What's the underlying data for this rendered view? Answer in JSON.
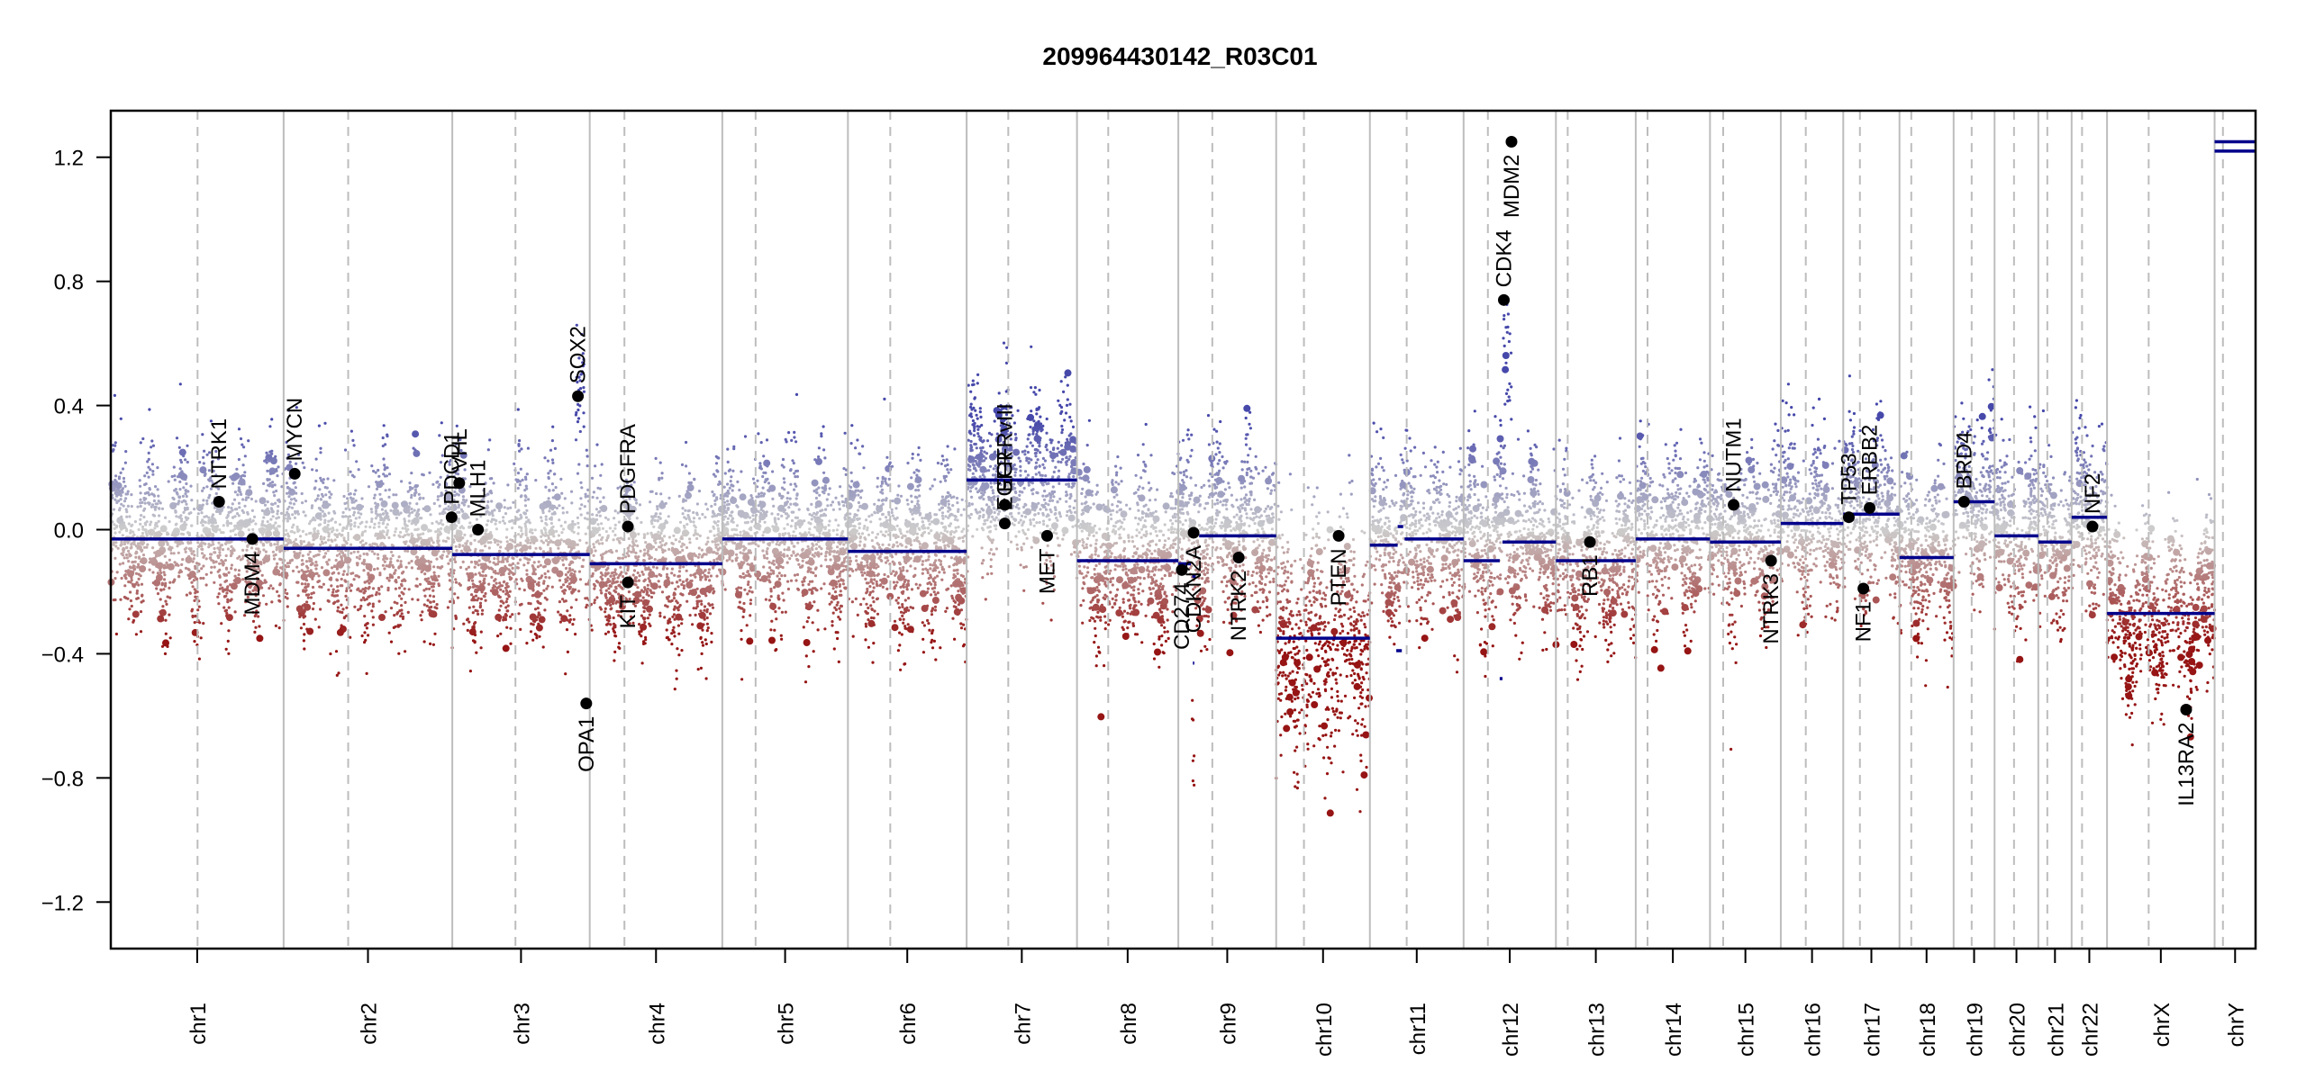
{
  "chart_data": {
    "type": "scatter",
    "title": "209964430142_R03C01",
    "xlabel": "",
    "ylabel": "",
    "ylim": [
      -1.35,
      1.35
    ],
    "yticks": [
      1.2,
      0.8,
      0.4,
      0.0,
      -0.4,
      -0.8,
      -1.2
    ],
    "ytick_labels": [
      "1.2",
      "0.8",
      "0.4",
      "0.0",
      "−0.4",
      "−0.8",
      "−1.2"
    ],
    "grid": false,
    "colors": {
      "gain": "#3b3fa0",
      "neutral": "#c8c8c8",
      "loss": "#9b1c1c",
      "segment": "#00008b",
      "gene_point": "#000000",
      "chrom_border": "#bdbdbd",
      "centromere": "#bdbdbd"
    },
    "chromosomes": [
      {
        "name": "chr1",
        "length_mb": 249,
        "centromere_mb": 125
      },
      {
        "name": "chr2",
        "length_mb": 243,
        "centromere_mb": 93
      },
      {
        "name": "chr3",
        "length_mb": 198,
        "centromere_mb": 91
      },
      {
        "name": "chr4",
        "length_mb": 191,
        "centromere_mb": 50
      },
      {
        "name": "chr5",
        "length_mb": 181,
        "centromere_mb": 48
      },
      {
        "name": "chr6",
        "length_mb": 171,
        "centromere_mb": 61
      },
      {
        "name": "chr7",
        "length_mb": 159,
        "centromere_mb": 60
      },
      {
        "name": "chr8",
        "length_mb": 146,
        "centromere_mb": 45
      },
      {
        "name": "chr9",
        "length_mb": 141,
        "centromere_mb": 49
      },
      {
        "name": "chr10",
        "length_mb": 135,
        "centromere_mb": 40
      },
      {
        "name": "chr11",
        "length_mb": 135,
        "centromere_mb": 53
      },
      {
        "name": "chr12",
        "length_mb": 133,
        "centromere_mb": 35
      },
      {
        "name": "chr13",
        "length_mb": 115,
        "centromere_mb": 17
      },
      {
        "name": "chr14",
        "length_mb": 107,
        "centromere_mb": 17
      },
      {
        "name": "chr15",
        "length_mb": 102,
        "centromere_mb": 19
      },
      {
        "name": "chr16",
        "length_mb": 90,
        "centromere_mb": 36
      },
      {
        "name": "chr17",
        "length_mb": 81,
        "centromere_mb": 24
      },
      {
        "name": "chr18",
        "length_mb": 78,
        "centromere_mb": 17
      },
      {
        "name": "chr19",
        "length_mb": 59,
        "centromere_mb": 26
      },
      {
        "name": "chr20",
        "length_mb": 63,
        "centromere_mb": 28
      },
      {
        "name": "chr21",
        "length_mb": 48,
        "centromere_mb": 13
      },
      {
        "name": "chr22",
        "length_mb": 51,
        "centromere_mb": 15
      },
      {
        "name": "chrX",
        "length_mb": 155,
        "centromere_mb": 60
      },
      {
        "name": "chrY",
        "length_mb": 59,
        "centromere_mb": 12
      }
    ],
    "segments": [
      {
        "chr": "chr1",
        "start": 0,
        "end": 249,
        "value": -0.03
      },
      {
        "chr": "chr2",
        "start": 0,
        "end": 243,
        "value": -0.06
      },
      {
        "chr": "chr3",
        "start": 0,
        "end": 198,
        "value": -0.08
      },
      {
        "chr": "chr4",
        "start": 0,
        "end": 191,
        "value": -0.11
      },
      {
        "chr": "chr5",
        "start": 0,
        "end": 181,
        "value": -0.03
      },
      {
        "chr": "chr6",
        "start": 0,
        "end": 171,
        "value": -0.07
      },
      {
        "chr": "chr7",
        "start": 0,
        "end": 159,
        "value": 0.16
      },
      {
        "chr": "chr8",
        "start": 0,
        "end": 146,
        "value": -0.1
      },
      {
        "chr": "chr9",
        "start": 0,
        "end": 18,
        "value": -0.11
      },
      {
        "chr": "chr9",
        "start": 20,
        "end": 25,
        "value": -0.15
      },
      {
        "chr": "chr9",
        "start": 21,
        "end": 23,
        "value": -0.43
      },
      {
        "chr": "chr9",
        "start": 30,
        "end": 141,
        "value": -0.02
      },
      {
        "chr": "chr10",
        "start": 0,
        "end": 135,
        "value": -0.35
      },
      {
        "chr": "chr11",
        "start": 0,
        "end": 40,
        "value": -0.05
      },
      {
        "chr": "chr11",
        "start": 40,
        "end": 48,
        "value": 0.01
      },
      {
        "chr": "chr11",
        "start": 38,
        "end": 46,
        "value": -0.39
      },
      {
        "chr": "chr11",
        "start": 50,
        "end": 135,
        "value": -0.03
      },
      {
        "chr": "chr12",
        "start": 0,
        "end": 52,
        "value": -0.1
      },
      {
        "chr": "chr12",
        "start": 52,
        "end": 56,
        "value": -0.48
      },
      {
        "chr": "chr12",
        "start": 56,
        "end": 133,
        "value": -0.04
      },
      {
        "chr": "chr13",
        "start": 0,
        "end": 115,
        "value": -0.1
      },
      {
        "chr": "chr14",
        "start": 0,
        "end": 107,
        "value": -0.03
      },
      {
        "chr": "chr15",
        "start": 0,
        "end": 102,
        "value": -0.04
      },
      {
        "chr": "chr16",
        "start": 0,
        "end": 90,
        "value": 0.02
      },
      {
        "chr": "chr17",
        "start": 0,
        "end": 81,
        "value": 0.05
      },
      {
        "chr": "chr18",
        "start": 0,
        "end": 78,
        "value": -0.09
      },
      {
        "chr": "chr19",
        "start": 0,
        "end": 59,
        "value": 0.09
      },
      {
        "chr": "chr20",
        "start": 0,
        "end": 63,
        "value": -0.02
      },
      {
        "chr": "chr21",
        "start": 0,
        "end": 48,
        "value": -0.04
      },
      {
        "chr": "chr22",
        "start": 0,
        "end": 51,
        "value": 0.04
      },
      {
        "chrX": "",
        "chr": "chrX",
        "start": 0,
        "end": 155,
        "value": -0.27
      },
      {
        "chr": "chrY",
        "start": 0,
        "end": 59,
        "value": 1.22
      },
      {
        "chr": "chrY",
        "start": 0,
        "end": 59,
        "value": 1.25
      }
    ],
    "genes": [
      {
        "name": "NTRK1",
        "chr": "chr1",
        "pos_mb": 156,
        "value": 0.09,
        "label_side": "above"
      },
      {
        "name": "MDM4",
        "chr": "chr1",
        "pos_mb": 204,
        "value": -0.03,
        "label_side": "below"
      },
      {
        "name": "MYCN",
        "chr": "chr2",
        "pos_mb": 16,
        "value": 0.18,
        "label_side": "above"
      },
      {
        "name": "PDCD1",
        "chr": "chr2",
        "pos_mb": 242,
        "value": 0.04,
        "label_side": "above"
      },
      {
        "name": "VHL",
        "chr": "chr3",
        "pos_mb": 10,
        "value": 0.15,
        "label_side": "above"
      },
      {
        "name": "MLH1",
        "chr": "chr3",
        "pos_mb": 37,
        "value": 0.0,
        "label_side": "above"
      },
      {
        "name": "SOX2",
        "chr": "chr3",
        "pos_mb": 181,
        "value": 0.43,
        "label_side": "above"
      },
      {
        "name": "OPA1",
        "chr": "chr3",
        "pos_mb": 193,
        "value": -0.56,
        "label_side": "below"
      },
      {
        "name": "PDGFRA",
        "chr": "chr4",
        "pos_mb": 55,
        "value": 0.01,
        "label_side": "above"
      },
      {
        "name": "KIT",
        "chr": "chr4",
        "pos_mb": 55,
        "value": -0.17,
        "label_side": "below"
      },
      {
        "name": "EGFR",
        "chr": "chr7",
        "pos_mb": 55,
        "value": 0.02,
        "label_side": "above"
      },
      {
        "name": "EGFRvIII",
        "chr": "chr7",
        "pos_mb": 55,
        "value": 0.08,
        "label_side": "above"
      },
      {
        "name": "MET",
        "chr": "chr7",
        "pos_mb": 116,
        "value": -0.02,
        "label_side": "below"
      },
      {
        "name": "CD274",
        "chr": "chr9",
        "pos_mb": 5,
        "value": -0.13,
        "label_side": "below"
      },
      {
        "name": "CDKN2A",
        "chr": "chr9",
        "pos_mb": 22,
        "value": -0.01,
        "label_side": "below"
      },
      {
        "name": "NTRK2",
        "chr": "chr9",
        "pos_mb": 87,
        "value": -0.09,
        "label_side": "below"
      },
      {
        "name": "PTEN",
        "chr": "chr10",
        "pos_mb": 90,
        "value": -0.02,
        "label_side": "below"
      },
      {
        "name": "CDK4",
        "chr": "chr12",
        "pos_mb": 58,
        "value": 0.74,
        "label_side": "above"
      },
      {
        "name": "MDM2",
        "chr": "chr12",
        "pos_mb": 69,
        "value": 1.25,
        "label_side": "below"
      },
      {
        "name": "RB1",
        "chr": "chr13",
        "pos_mb": 49,
        "value": -0.04,
        "label_side": "below"
      },
      {
        "name": "NUTM1",
        "chr": "chr15",
        "pos_mb": 34,
        "value": 0.08,
        "label_side": "above"
      },
      {
        "name": "NTRK3",
        "chr": "chr15",
        "pos_mb": 88,
        "value": -0.1,
        "label_side": "below"
      },
      {
        "name": "TP53",
        "chr": "chr17",
        "pos_mb": 8,
        "value": 0.04,
        "label_side": "above"
      },
      {
        "name": "NF1",
        "chr": "chr17",
        "pos_mb": 29,
        "value": -0.19,
        "label_side": "below"
      },
      {
        "name": "ERBB2",
        "chr": "chr17",
        "pos_mb": 38,
        "value": 0.07,
        "label_side": "above"
      },
      {
        "name": "BRD4",
        "chr": "chr19",
        "pos_mb": 15,
        "value": 0.09,
        "label_side": "above"
      },
      {
        "name": "NF2",
        "chr": "chr22",
        "pos_mb": 30,
        "value": 0.01,
        "label_side": "above"
      },
      {
        "name": "IL13RA2",
        "chr": "chrX",
        "pos_mb": 114,
        "value": -0.58,
        "label_side": "below"
      }
    ],
    "probe_noise": {
      "description": "Dense per-probe log2 ratio scatter, colored blue (gain) to grey (neutral) to red (loss) around each segment mean",
      "spread_sd": 0.12,
      "regional_amplifications": [
        {
          "chr": "chr3",
          "start": 178,
          "end": 190,
          "value": 0.45
        },
        {
          "chr": "chr12",
          "start": 57,
          "end": 70,
          "value": 0.55
        },
        {
          "chr": "chr9",
          "start": 20,
          "end": 23,
          "value": -0.75
        }
      ]
    }
  }
}
